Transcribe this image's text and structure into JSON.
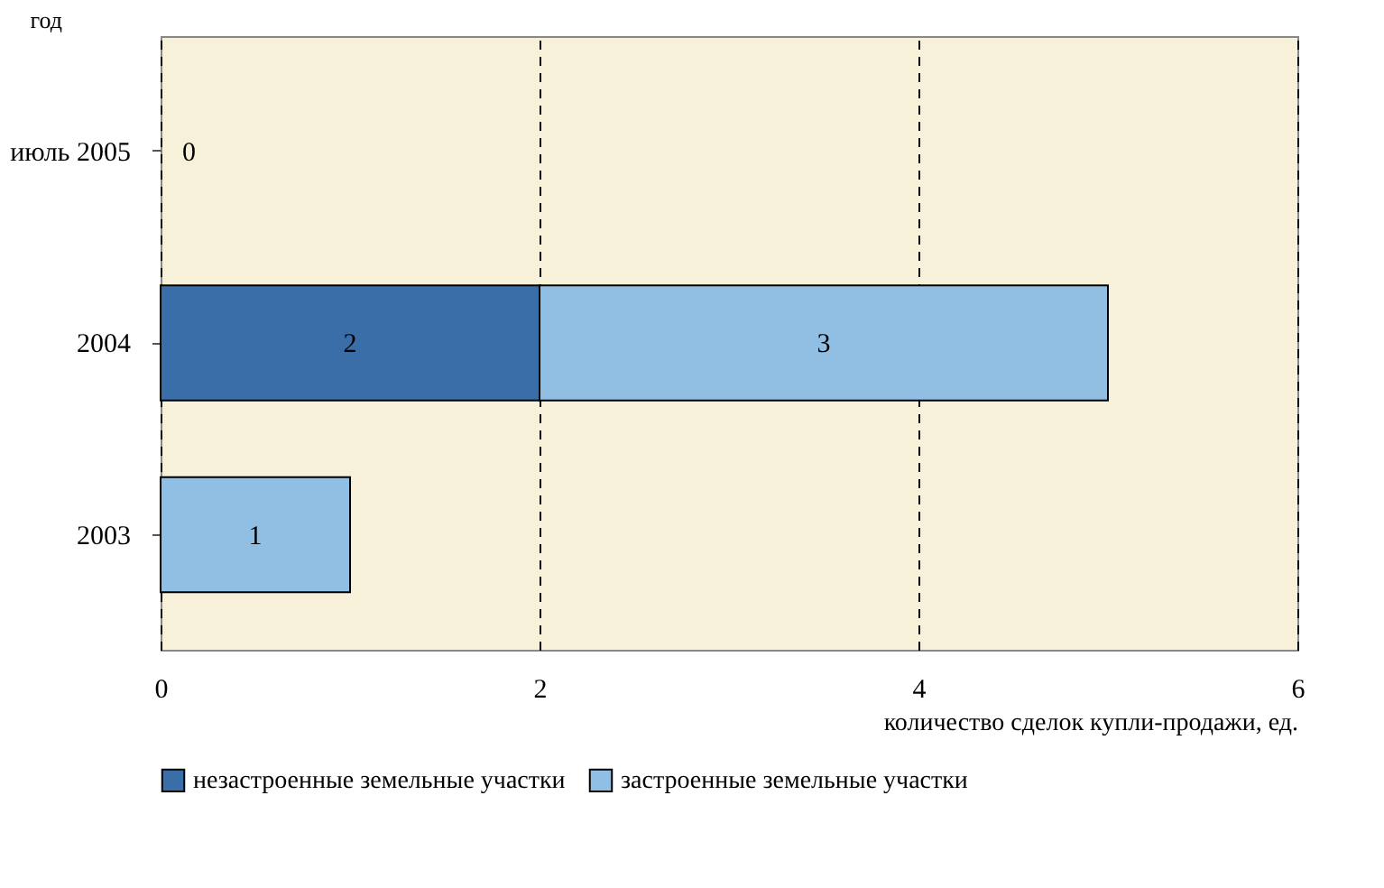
{
  "chart_data": {
    "type": "bar",
    "orientation": "horizontal",
    "stacked": true,
    "ylabel": "год",
    "xlabel": "количество сделок купли-продажи, ед.",
    "categories": [
      "июль 2005",
      "2004",
      "2003"
    ],
    "series": [
      {
        "name": "незастроенные земельные участки",
        "color": "#3a6ea8",
        "values": [
          0,
          2,
          0
        ],
        "value_labels": [
          "0",
          "2",
          null
        ]
      },
      {
        "name": "застроенные земельные участки",
        "color": "#90bfe3",
        "values": [
          0,
          3,
          1
        ],
        "value_labels": [
          null,
          "3",
          "1"
        ]
      }
    ],
    "xlim": [
      0,
      6
    ],
    "xticks": [
      0,
      2,
      4,
      6
    ],
    "grid": "x",
    "legend": "bottom"
  }
}
